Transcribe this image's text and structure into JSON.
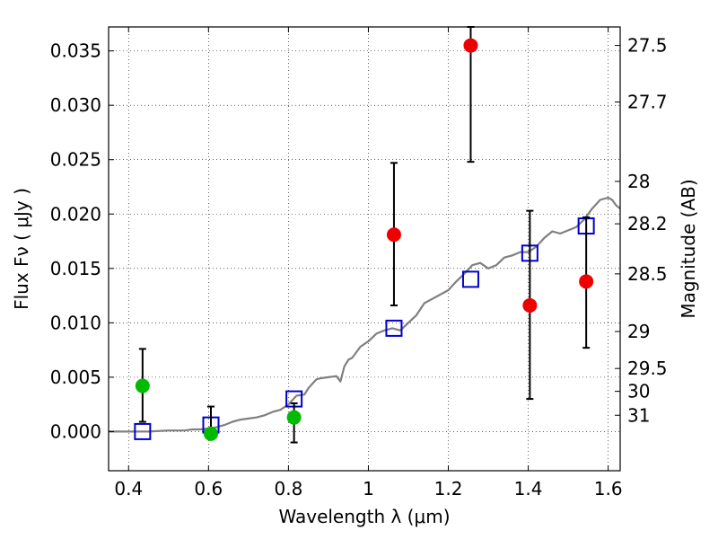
{
  "chart_data": {
    "type": "scatter",
    "xlabel": "Wavelength  λ (μm)",
    "ylabel": "Flux  Fν  ( μJy )",
    "right_ylabel": "Magnitude (AB)",
    "xlim": [
      0.35,
      1.63
    ],
    "ylim": [
      -0.0036,
      0.0372
    ],
    "grid": true,
    "x_ticks": [
      0.4,
      0.6,
      0.8,
      1.0,
      1.2,
      1.4,
      1.6
    ],
    "x_tick_labels": [
      "0.4",
      "0.6",
      "0.8",
      "1",
      "1.2",
      "1.4",
      "1.6"
    ],
    "y_ticks": [
      0.0,
      0.005,
      0.01,
      0.015,
      0.02,
      0.025,
      0.03,
      0.035
    ],
    "y_tick_labels": [
      "0.000",
      "0.005",
      "0.010",
      "0.015",
      "0.020",
      "0.025",
      "0.030",
      "0.035"
    ],
    "right_ticks": [
      {
        "flux": 0.0355,
        "label": "27.5"
      },
      {
        "flux": 0.0303,
        "label": "27.7"
      },
      {
        "flux": 0.023,
        "label": "28"
      },
      {
        "flux": 0.0191,
        "label": "28.2"
      },
      {
        "flux": 0.0145,
        "label": "28.5"
      },
      {
        "flux": 0.0092,
        "label": "29"
      },
      {
        "flux": 0.0058,
        "label": "29.5"
      },
      {
        "flux": 0.0037,
        "label": "30"
      },
      {
        "flux": 0.0015,
        "label": "31"
      }
    ],
    "series": [
      {
        "kind": "line",
        "color": "#808080",
        "x": [
          0.35,
          0.4,
          0.45,
          0.5,
          0.52,
          0.54,
          0.56,
          0.58,
          0.6,
          0.62,
          0.64,
          0.66,
          0.68,
          0.7,
          0.72,
          0.74,
          0.76,
          0.78,
          0.8,
          0.82,
          0.84,
          0.85,
          0.86,
          0.87,
          0.88,
          0.9,
          0.92,
          0.93,
          0.94,
          0.95,
          0.96,
          0.98,
          1.0,
          1.02,
          1.04,
          1.06,
          1.08,
          1.1,
          1.12,
          1.14,
          1.16,
          1.18,
          1.2,
          1.22,
          1.24,
          1.26,
          1.28,
          1.3,
          1.32,
          1.34,
          1.36,
          1.38,
          1.4,
          1.42,
          1.44,
          1.46,
          1.48,
          1.5,
          1.52,
          1.54,
          1.56,
          1.58,
          1.6,
          1.61,
          1.62,
          1.63
        ],
        "y": [
          0.0,
          0.0,
          0.0,
          0.0001,
          0.0001,
          0.0001,
          0.0002,
          0.0002,
          0.0003,
          0.0004,
          0.0006,
          0.0009,
          0.0011,
          0.0012,
          0.0013,
          0.0015,
          0.0018,
          0.002,
          0.0025,
          0.0033,
          0.0034,
          0.004,
          0.0044,
          0.0048,
          0.0049,
          0.005,
          0.0051,
          0.0046,
          0.006,
          0.0066,
          0.0068,
          0.0078,
          0.0083,
          0.009,
          0.0093,
          0.0095,
          0.0093,
          0.01,
          0.0107,
          0.0118,
          0.0122,
          0.0126,
          0.013,
          0.0138,
          0.0145,
          0.0153,
          0.0155,
          0.015,
          0.0153,
          0.016,
          0.0162,
          0.0165,
          0.0165,
          0.017,
          0.0178,
          0.0184,
          0.0182,
          0.0185,
          0.0188,
          0.0195,
          0.0205,
          0.0213,
          0.0215,
          0.0213,
          0.0208,
          0.0205
        ]
      },
      {
        "kind": "markers",
        "marker": "open-square",
        "color": "#0000cc",
        "x": [
          0.435,
          0.606,
          0.814,
          1.064,
          1.256,
          1.404,
          1.545
        ],
        "y": [
          0.0,
          0.0006,
          0.003,
          0.0095,
          0.014,
          0.0164,
          0.0189
        ]
      },
      {
        "kind": "markers",
        "marker": "filled-circle",
        "color": "#00bb00",
        "x": [
          0.435,
          0.606,
          0.814
        ],
        "y": [
          0.0042,
          -0.0002,
          0.0013
        ],
        "yerr_low": [
          0.0033,
          null,
          0.0023
        ],
        "yerr_high": [
          0.0034,
          0.0025,
          0.0013
        ]
      },
      {
        "kind": "markers",
        "marker": "filled-circle",
        "color": "#ee0000",
        "x": [
          1.064,
          1.256,
          1.404,
          1.545
        ],
        "y": [
          0.0181,
          0.0355,
          0.0116,
          0.0138
        ],
        "yerr_low": [
          0.0065,
          0.0107,
          0.0086,
          0.0061
        ],
        "yerr_high": [
          0.0066,
          0.0017,
          0.0087,
          0.0059
        ]
      }
    ]
  }
}
